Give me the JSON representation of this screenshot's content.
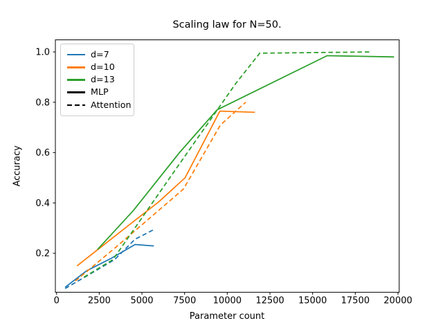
{
  "chart_data": {
    "type": "line",
    "title": "Scaling law for N=50.",
    "xlabel": "Parameter count",
    "ylabel": "Accuracy",
    "xlim": [
      -70,
      20070
    ],
    "ylim": [
      0.045,
      1.048
    ],
    "x_ticks": [
      0,
      2500,
      5000,
      7500,
      10000,
      12500,
      15000,
      17500,
      20000
    ],
    "y_ticks": [
      0.2,
      0.4,
      0.6,
      0.8,
      1.0
    ],
    "grid": false,
    "legend_position": "upper left",
    "series": [
      {
        "name": "d=7 MLP",
        "color": "#1f77b4",
        "style": "solid",
        "points": [
          [
            500,
            0.065
          ],
          [
            1750,
            0.13
          ],
          [
            3200,
            0.18
          ],
          [
            4600,
            0.235
          ],
          [
            5700,
            0.229
          ]
        ]
      },
      {
        "name": "d=7 Attention",
        "color": "#1f77b4",
        "style": "dashed",
        "points": [
          [
            500,
            0.06
          ],
          [
            1900,
            0.115
          ],
          [
            3400,
            0.175
          ],
          [
            4600,
            0.256
          ],
          [
            5780,
            0.297
          ]
        ]
      },
      {
        "name": "d=10 MLP",
        "color": "#ff7f0e",
        "style": "solid",
        "points": [
          [
            1200,
            0.15
          ],
          [
            4200,
            0.31
          ],
          [
            6000,
            0.405
          ],
          [
            7530,
            0.5
          ],
          [
            9570,
            0.765
          ],
          [
            11620,
            0.76
          ]
        ]
      },
      {
        "name": "d=10 Attention",
        "color": "#ff7f0e",
        "style": "dashed",
        "points": [
          [
            1100,
            0.09
          ],
          [
            3400,
            0.22
          ],
          [
            7430,
            0.455
          ],
          [
            9600,
            0.71
          ],
          [
            11080,
            0.8
          ]
        ]
      },
      {
        "name": "d=13 MLP",
        "color": "#2ca02c",
        "style": "solid",
        "points": [
          [
            2400,
            0.215
          ],
          [
            4500,
            0.37
          ],
          [
            7200,
            0.6
          ],
          [
            9400,
            0.77
          ],
          [
            15850,
            0.985
          ],
          [
            19770,
            0.98
          ]
        ]
      },
      {
        "name": "d=13 Attention",
        "color": "#2ca02c",
        "style": "dashed",
        "points": [
          [
            1600,
            0.105
          ],
          [
            3300,
            0.175
          ],
          [
            7200,
            0.555
          ],
          [
            10500,
            0.875
          ],
          [
            11900,
            0.995
          ],
          [
            18400,
            1.0
          ]
        ]
      }
    ]
  },
  "legend": {
    "items": [
      {
        "label": "d=7",
        "color": "#1f77b4",
        "dash": "solid"
      },
      {
        "label": "d=10",
        "color": "#ff7f0e",
        "dash": "solid"
      },
      {
        "label": "d=13",
        "color": "#2ca02c",
        "dash": "solid"
      },
      {
        "label": "MLP",
        "color": "#000000",
        "dash": "solid"
      },
      {
        "label": "Attention",
        "color": "#000000",
        "dash": "dashed"
      }
    ]
  }
}
